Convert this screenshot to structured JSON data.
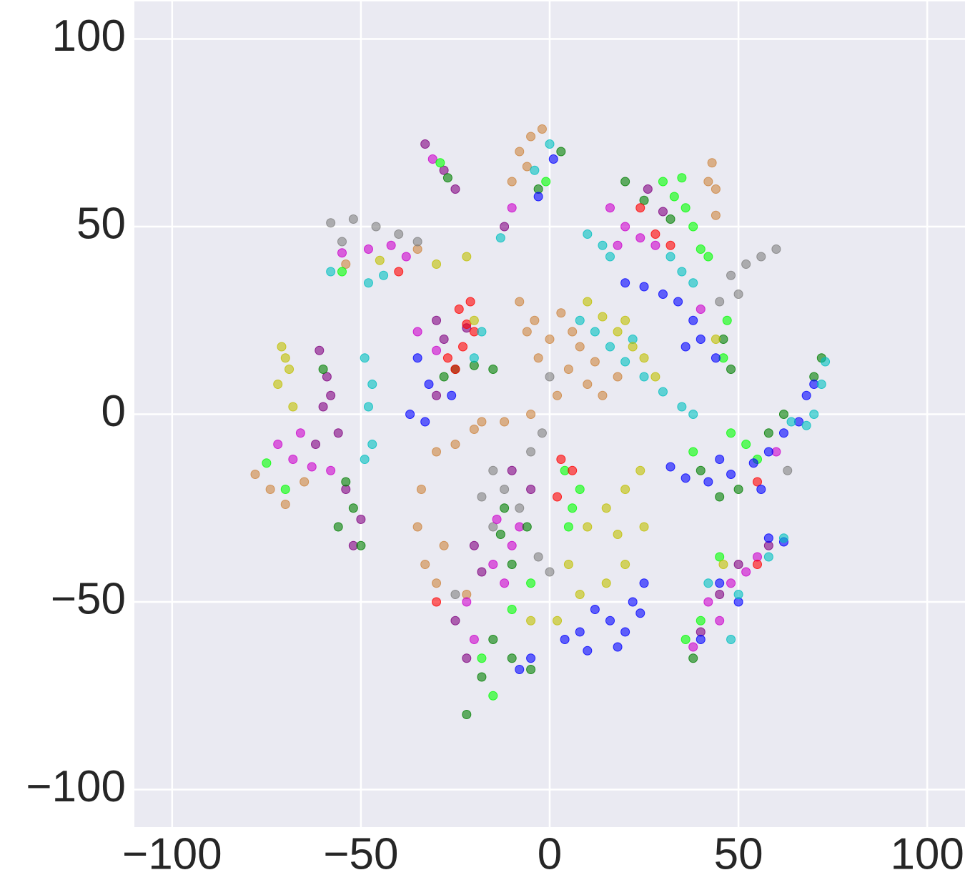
{
  "chart_data": {
    "type": "scatter",
    "xlim": [
      -110,
      110
    ],
    "ylim": [
      -110,
      110
    ],
    "xticks": [
      {
        "value": -100,
        "label": "−100"
      },
      {
        "value": -50,
        "label": "−50"
      },
      0,
      50,
      100
    ],
    "yticks": [
      {
        "value": -100,
        "label": "−100"
      },
      {
        "value": -50,
        "label": "−50"
      },
      0,
      50,
      100
    ],
    "grid": true,
    "background": "#eaeaf2",
    "series": [
      {
        "color": "#cd853f",
        "points": [
          [
            -8,
            70
          ],
          [
            -5,
            74
          ],
          [
            -2,
            76
          ],
          [
            -10,
            62
          ],
          [
            -6,
            66
          ],
          [
            43,
            67
          ],
          [
            44,
            60
          ],
          [
            44,
            53
          ],
          [
            42,
            62
          ],
          [
            -54,
            40
          ],
          [
            -35,
            44
          ],
          [
            -8,
            30
          ],
          [
            -4,
            25
          ],
          [
            0,
            20
          ],
          [
            3,
            27
          ],
          [
            -3,
            15
          ],
          [
            5,
            12
          ],
          [
            8,
            18
          ],
          [
            10,
            8
          ],
          [
            14,
            5
          ],
          [
            6,
            22
          ],
          [
            12,
            14
          ],
          [
            18,
            10
          ],
          [
            2,
            5
          ],
          [
            -6,
            22
          ],
          [
            -78,
            -16
          ],
          [
            -74,
            -20
          ],
          [
            -70,
            -24
          ],
          [
            -65,
            -18
          ],
          [
            -30,
            -10
          ],
          [
            -34,
            -20
          ],
          [
            -35,
            -30
          ],
          [
            -33,
            -40
          ],
          [
            -30,
            -45
          ],
          [
            -25,
            -8
          ],
          [
            -20,
            -4
          ],
          [
            -12,
            -2
          ],
          [
            -5,
            0
          ],
          [
            -28,
            -35
          ],
          [
            -22,
            -48
          ],
          [
            -18,
            -2
          ]
        ]
      },
      {
        "color": "#808080",
        "points": [
          [
            -58,
            51
          ],
          [
            -52,
            52
          ],
          [
            -46,
            50
          ],
          [
            -40,
            48
          ],
          [
            -35,
            46
          ],
          [
            -55,
            46
          ],
          [
            48,
            37
          ],
          [
            52,
            40
          ],
          [
            56,
            42
          ],
          [
            60,
            44
          ],
          [
            50,
            32
          ],
          [
            45,
            30
          ],
          [
            -15,
            -15
          ],
          [
            -12,
            -20
          ],
          [
            -8,
            -25
          ],
          [
            -15,
            -30
          ],
          [
            -5,
            -10
          ],
          [
            -2,
            -5
          ],
          [
            -3,
            -38
          ],
          [
            0,
            -42
          ],
          [
            -25,
            -48
          ],
          [
            -18,
            -22
          ],
          [
            63,
            -15
          ],
          [
            0,
            10
          ]
        ]
      },
      {
        "color": "#cc00cc",
        "points": [
          [
            -31,
            68
          ],
          [
            -10,
            55
          ],
          [
            -55,
            43
          ],
          [
            -48,
            44
          ],
          [
            -42,
            45
          ],
          [
            -38,
            42
          ],
          [
            16,
            55
          ],
          [
            20,
            50
          ],
          [
            24,
            47
          ],
          [
            18,
            45
          ],
          [
            28,
            45
          ],
          [
            40,
            28
          ],
          [
            -35,
            22
          ],
          [
            -30,
            17
          ],
          [
            -72,
            -8
          ],
          [
            -68,
            -12
          ],
          [
            -63,
            -14
          ],
          [
            -58,
            -15
          ],
          [
            -66,
            -5
          ],
          [
            -14,
            -28
          ],
          [
            -10,
            -35
          ],
          [
            -15,
            -40
          ],
          [
            -22,
            -50
          ],
          [
            -20,
            -60
          ],
          [
            -12,
            -45
          ],
          [
            -8,
            -30
          ],
          [
            42,
            -50
          ],
          [
            48,
            -45
          ],
          [
            52,
            -42
          ],
          [
            55,
            -38
          ],
          [
            45,
            -55
          ],
          [
            38,
            -62
          ],
          [
            60,
            -10
          ]
        ]
      },
      {
        "color": "#800080",
        "points": [
          [
            -33,
            72
          ],
          [
            -28,
            65
          ],
          [
            -25,
            60
          ],
          [
            -12,
            50
          ],
          [
            -30,
            25
          ],
          [
            -28,
            20
          ],
          [
            -22,
            23
          ],
          [
            -30,
            5
          ],
          [
            -61,
            17
          ],
          [
            -59,
            10
          ],
          [
            -60,
            2
          ],
          [
            -56,
            -5
          ],
          [
            -62,
            -8
          ],
          [
            -58,
            5
          ],
          [
            -54,
            -20
          ],
          [
            -50,
            -28
          ],
          [
            -52,
            -35
          ],
          [
            -20,
            -35
          ],
          [
            -18,
            -42
          ],
          [
            -10,
            -15
          ],
          [
            -5,
            -20
          ],
          [
            -25,
            -55
          ],
          [
            -22,
            -65
          ],
          [
            30,
            54
          ],
          [
            26,
            60
          ],
          [
            45,
            -48
          ],
          [
            50,
            -40
          ],
          [
            40,
            -58
          ],
          [
            58,
            -35
          ]
        ]
      },
      {
        "color": "#007f00",
        "points": [
          [
            -27,
            63
          ],
          [
            3,
            70
          ],
          [
            -3,
            60
          ],
          [
            20,
            62
          ],
          [
            25,
            57
          ],
          [
            32,
            52
          ],
          [
            46,
            20
          ],
          [
            48,
            12
          ],
          [
            -25,
            12
          ],
          [
            -20,
            13
          ],
          [
            -15,
            12
          ],
          [
            -28,
            10
          ],
          [
            -60,
            12
          ],
          [
            -54,
            -18
          ],
          [
            -52,
            -25
          ],
          [
            -50,
            -35
          ],
          [
            -56,
            -30
          ],
          [
            -12,
            -25
          ],
          [
            -10,
            -40
          ],
          [
            -13,
            -32
          ],
          [
            -6,
            -30
          ],
          [
            -18,
            -70
          ],
          [
            -22,
            -80
          ],
          [
            -15,
            -60
          ],
          [
            -10,
            -65
          ],
          [
            -5,
            -68
          ],
          [
            40,
            -15
          ],
          [
            50,
            -20
          ],
          [
            58,
            -5
          ],
          [
            62,
            0
          ],
          [
            70,
            10
          ],
          [
            72,
            15
          ],
          [
            45,
            -22
          ],
          [
            38,
            -65
          ]
        ]
      },
      {
        "color": "#00ff00",
        "points": [
          [
            -29,
            67
          ],
          [
            -1,
            62
          ],
          [
            -55,
            38
          ],
          [
            30,
            62
          ],
          [
            33,
            58
          ],
          [
            36,
            55
          ],
          [
            38,
            50
          ],
          [
            40,
            44
          ],
          [
            42,
            42
          ],
          [
            47,
            25
          ],
          [
            46,
            15
          ],
          [
            35,
            63
          ],
          [
            -75,
            -13
          ],
          [
            -70,
            -20
          ],
          [
            4,
            -15
          ],
          [
            8,
            -20
          ],
          [
            6,
            -25
          ],
          [
            5,
            -30
          ],
          [
            -5,
            -45
          ],
          [
            -10,
            -52
          ],
          [
            -15,
            -75
          ],
          [
            -18,
            -65
          ],
          [
            38,
            -10
          ],
          [
            52,
            -8
          ],
          [
            55,
            -12
          ],
          [
            48,
            -5
          ],
          [
            36,
            -60
          ],
          [
            40,
            -55
          ],
          [
            45,
            -38
          ]
        ]
      },
      {
        "color": "#ff0000",
        "points": [
          [
            24,
            55
          ],
          [
            28,
            48
          ],
          [
            32,
            45
          ],
          [
            -24,
            28
          ],
          [
            -22,
            24
          ],
          [
            -23,
            18
          ],
          [
            -20,
            22
          ],
          [
            -25,
            12
          ],
          [
            -21,
            30
          ],
          [
            -27,
            15
          ],
          [
            3,
            -12
          ],
          [
            6,
            -15
          ],
          [
            2,
            -22
          ],
          [
            -30,
            -50
          ],
          [
            -40,
            38
          ],
          [
            55,
            -18
          ],
          [
            55,
            -40
          ]
        ]
      },
      {
        "color": "#0000ff",
        "points": [
          [
            -3,
            58
          ],
          [
            1,
            68
          ],
          [
            20,
            35
          ],
          [
            25,
            34
          ],
          [
            30,
            32
          ],
          [
            34,
            30
          ],
          [
            38,
            25
          ],
          [
            40,
            20
          ],
          [
            44,
            15
          ],
          [
            36,
            18
          ],
          [
            -35,
            15
          ],
          [
            -37,
            0
          ],
          [
            -33,
            -2
          ],
          [
            -32,
            8
          ],
          [
            -26,
            5
          ],
          [
            -8,
            -68
          ],
          [
            -5,
            -65
          ],
          [
            4,
            -60
          ],
          [
            8,
            -58
          ],
          [
            12,
            -52
          ],
          [
            16,
            -55
          ],
          [
            20,
            -58
          ],
          [
            22,
            -50
          ],
          [
            25,
            -45
          ],
          [
            18,
            -62
          ],
          [
            10,
            -63
          ],
          [
            24,
            -53
          ],
          [
            32,
            -14
          ],
          [
            36,
            -17
          ],
          [
            42,
            -18
          ],
          [
            48,
            -16
          ],
          [
            54,
            -13
          ],
          [
            58,
            -10
          ],
          [
            62,
            -5
          ],
          [
            66,
            -2
          ],
          [
            68,
            5
          ],
          [
            70,
            8
          ],
          [
            56,
            -20
          ],
          [
            45,
            -12
          ],
          [
            45,
            -45
          ],
          [
            50,
            -50
          ],
          [
            58,
            -33
          ],
          [
            62,
            -34
          ],
          [
            40,
            -60
          ]
        ]
      },
      {
        "color": "#00bfbf",
        "points": [
          [
            0,
            72
          ],
          [
            -4,
            65
          ],
          [
            -13,
            47
          ],
          [
            -48,
            35
          ],
          [
            -44,
            37
          ],
          [
            -58,
            38
          ],
          [
            10,
            48
          ],
          [
            14,
            45
          ],
          [
            16,
            42
          ],
          [
            35,
            38
          ],
          [
            38,
            35
          ],
          [
            32,
            42
          ],
          [
            8,
            25
          ],
          [
            12,
            22
          ],
          [
            16,
            18
          ],
          [
            20,
            14
          ],
          [
            25,
            10
          ],
          [
            30,
            6
          ],
          [
            35,
            2
          ],
          [
            38,
            0
          ],
          [
            22,
            20
          ],
          [
            -49,
            15
          ],
          [
            -47,
            8
          ],
          [
            -48,
            2
          ],
          [
            -47,
            -8
          ],
          [
            -49,
            -12
          ],
          [
            -18,
            22
          ],
          [
            -20,
            15
          ],
          [
            70,
            0
          ],
          [
            72,
            8
          ],
          [
            73,
            14
          ],
          [
            68,
            -3
          ],
          [
            64,
            -2
          ],
          [
            50,
            -48
          ],
          [
            58,
            -38
          ],
          [
            62,
            -33
          ],
          [
            48,
            -60
          ],
          [
            42,
            -45
          ]
        ]
      },
      {
        "color": "#bfbf00",
        "points": [
          [
            -45,
            41
          ],
          [
            -30,
            40
          ],
          [
            -22,
            42
          ],
          [
            10,
            30
          ],
          [
            14,
            26
          ],
          [
            18,
            22
          ],
          [
            22,
            18
          ],
          [
            25,
            15
          ],
          [
            20,
            25
          ],
          [
            28,
            10
          ],
          [
            -71,
            18
          ],
          [
            -69,
            12
          ],
          [
            -72,
            8
          ],
          [
            -68,
            2
          ],
          [
            -70,
            15
          ],
          [
            10,
            -30
          ],
          [
            15,
            -25
          ],
          [
            20,
            -20
          ],
          [
            24,
            -15
          ],
          [
            25,
            -30
          ],
          [
            20,
            -40
          ],
          [
            15,
            -45
          ],
          [
            8,
            -48
          ],
          [
            2,
            -55
          ],
          [
            5,
            -40
          ],
          [
            18,
            -32
          ],
          [
            -5,
            -55
          ],
          [
            -20,
            25
          ],
          [
            44,
            20
          ],
          [
            46,
            -40
          ]
        ]
      }
    ]
  }
}
